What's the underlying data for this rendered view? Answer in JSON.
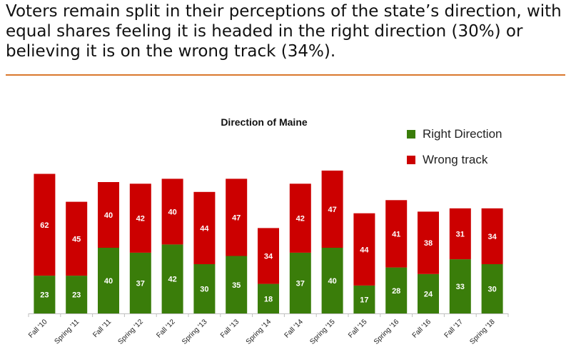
{
  "headline": "Voters remain split in their perceptions of the state’s direction, with equal shares feeling it is headed in the right direction (30%) or believing it is on the wrong track (34%).",
  "colors": {
    "rule": "#d9782d",
    "right": "#3a7d0a",
    "wrong": "#cc0000",
    "axis": "#bfbfbf"
  },
  "chart_data": {
    "type": "bar",
    "stacked": true,
    "title": "Direction of Maine",
    "categories": [
      "Fall '10",
      "Spring '11",
      "Fall '11",
      "Spring '12",
      "Fall '12",
      "Spring '13",
      "Fall '13",
      "Spring '14",
      "Fall '14",
      "Spring '15",
      "Fall '15",
      "Spring '16",
      "Fall '16",
      "Fall '17",
      "Spring '18"
    ],
    "series": [
      {
        "name": "Right Direction",
        "values": [
          23,
          23,
          40,
          37,
          42,
          30,
          35,
          18,
          37,
          40,
          17,
          28,
          24,
          33,
          30
        ]
      },
      {
        "name": "Wrong track",
        "values": [
          62,
          45,
          40,
          42,
          40,
          44,
          47,
          34,
          42,
          47,
          44,
          41,
          38,
          31,
          34
        ]
      }
    ],
    "legend_position": "top-right",
    "grid": false
  }
}
